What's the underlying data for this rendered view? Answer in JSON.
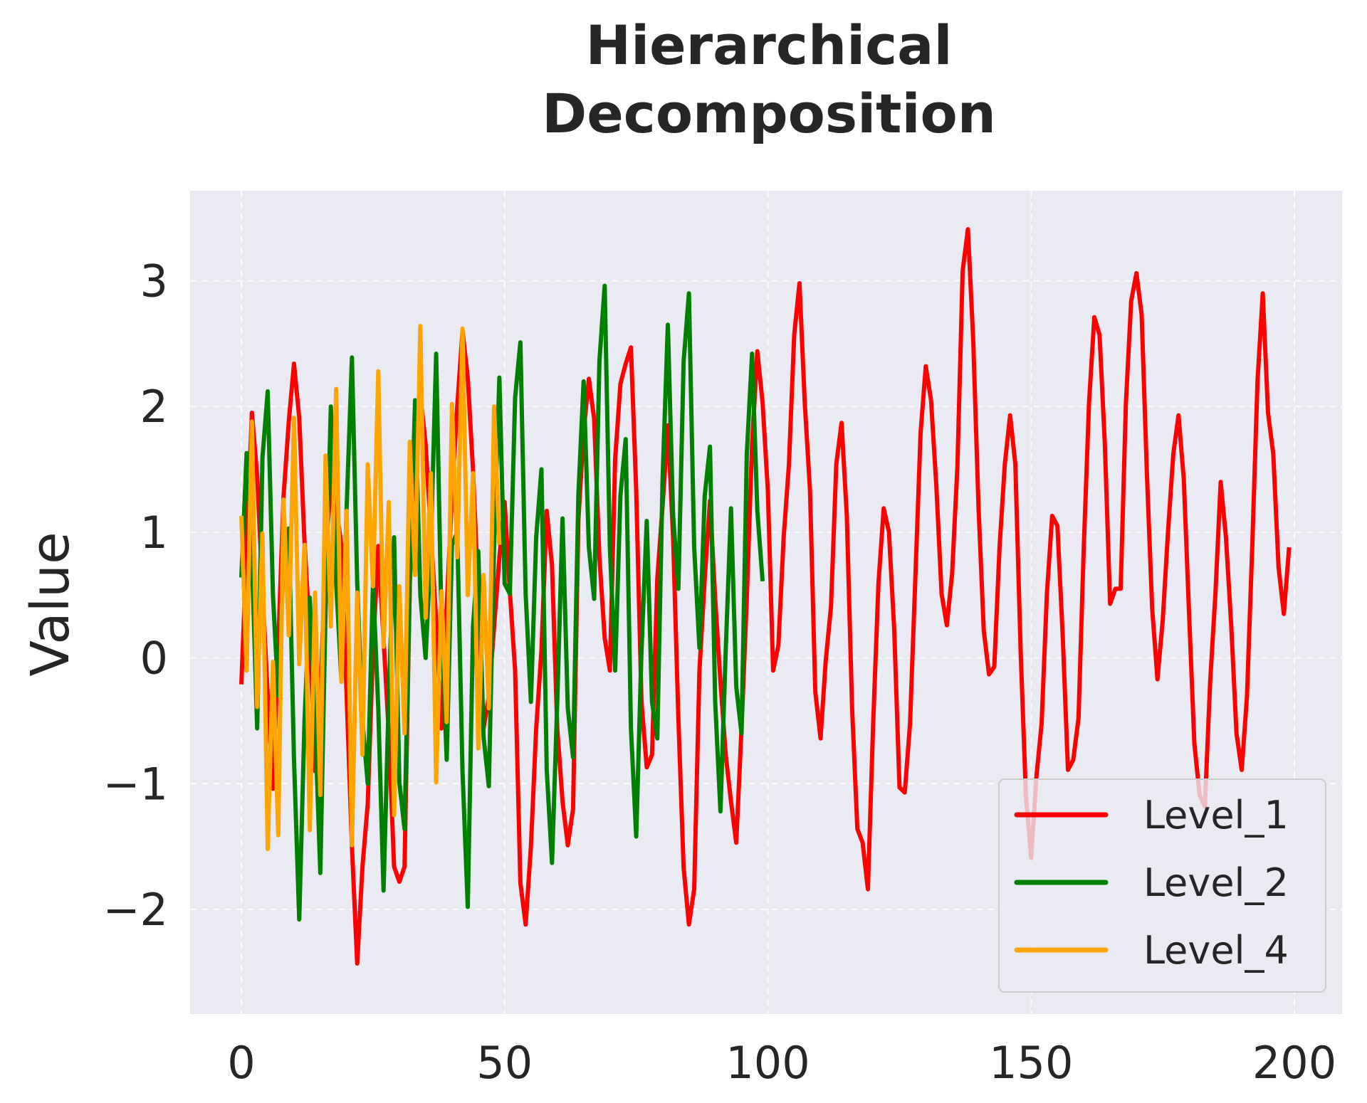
{
  "chart_data": {
    "type": "line",
    "title_lines": [
      "Hierarchical",
      "Decomposition"
    ],
    "xlabel": "",
    "ylabel": "Value",
    "xlim": [
      -10,
      209
    ],
    "ylim": [
      -2.8,
      3.75
    ],
    "x_ticks": [
      "0",
      "50",
      "100",
      "150",
      "200"
    ],
    "x_tick_values": [
      0,
      50,
      100,
      150,
      200
    ],
    "y_ticks": [
      "−2",
      "−1",
      "0",
      "1",
      "2",
      "3"
    ],
    "y_tick_values": [
      -2,
      -1,
      0,
      1,
      2,
      3
    ],
    "grid": true,
    "background": "#EAEAF2",
    "legend_position": "lower-right",
    "series": [
      {
        "name": "Level_1",
        "color": "#FF0000",
        "values": [
          -0.21,
          0.87,
          1.95,
          1.45,
          0.55,
          -0.3,
          -1.04,
          0.1,
          1.28,
          1.88,
          2.34,
          1.91,
          0.92,
          0.2,
          -0.9,
          -0.3,
          0.8,
          1.4,
          1.2,
          0.9,
          -0.3,
          -1.5,
          -2.43,
          -1.66,
          -1.16,
          0.07,
          0.89,
          0.15,
          -0.6,
          -1.66,
          -1.78,
          -1.66,
          0.6,
          1.5,
          2.1,
          1.7,
          1.0,
          0.3,
          -0.56,
          0.4,
          1.3,
          2.0,
          2.6,
          2.23,
          1.49,
          0.5,
          -0.56,
          -0.3,
          0.25,
          0.8,
          1.24,
          0.53,
          -0.1,
          -1.79,
          -2.12,
          -1.5,
          -0.56,
          0.06,
          1.17,
          0.74,
          -0.56,
          -1.14,
          -1.49,
          -1.2,
          1.09,
          1.8,
          2.22,
          1.9,
          0.8,
          0.16,
          -0.1,
          1.58,
          2.18,
          2.34,
          2.47,
          1.33,
          -0.35,
          -0.87,
          -0.77,
          0.63,
          1.21,
          1.85,
          0.96,
          -0.48,
          -1.67,
          -2.12,
          -1.84,
          -0.1,
          0.63,
          1.25,
          0.47,
          -0.19,
          -0.77,
          -1.14,
          -1.47,
          -0.56,
          0.47,
          1.7,
          2.44,
          2.03,
          1.33,
          -0.1,
          0.1,
          0.96,
          1.54,
          2.57,
          2.98,
          2.03,
          1.33,
          -0.27,
          -0.64,
          -0.02,
          0.41,
          1.54,
          1.87,
          1.13,
          -0.4,
          -1.36,
          -1.47,
          -1.84,
          -0.52,
          0.59,
          1.19,
          1.0,
          0.22,
          -1.03,
          -1.07,
          -0.52,
          0.63,
          1.79,
          2.32,
          2.05,
          1.37,
          0.51,
          0.26,
          0.67,
          1.52,
          3.08,
          3.41,
          2.53,
          1.21,
          0.22,
          -0.13,
          -0.07,
          0.88,
          1.54,
          1.93,
          1.54,
          0.06,
          -1.09,
          -1.59,
          -0.95,
          -0.52,
          0.51,
          1.13,
          1.05,
          0.18,
          -0.89,
          -0.81,
          -0.48,
          0.88,
          2.03,
          2.71,
          2.57,
          1.7,
          0.43,
          0.55,
          0.55,
          2.03,
          2.84,
          3.06,
          2.73,
          1.46,
          0.39,
          -0.17,
          0.3,
          1.0,
          1.62,
          1.93,
          1.42,
          0.35,
          -0.68,
          -1.09,
          -1.18,
          -0.19,
          0.51,
          1.4,
          0.96,
          0.26,
          -0.6,
          -0.89,
          -0.31,
          0.88,
          2.2,
          2.9,
          1.95,
          1.62,
          0.72,
          0.35,
          0.88
        ]
      },
      {
        "name": "Level_2",
        "color": "#008000",
        "values": [
          0.64,
          1.63,
          0.8,
          -0.56,
          1.59,
          2.12,
          0.5,
          -0.3,
          0.8,
          1.03,
          -0.8,
          -2.08,
          -0.5,
          0.48,
          -0.5,
          -1.71,
          0.4,
          2.0,
          0.6,
          -0.17,
          1.2,
          2.39,
          0.6,
          -0.5,
          -1.0,
          0.6,
          -0.4,
          -1.85,
          -0.3,
          0.96,
          -0.99,
          -1.36,
          0.6,
          2.05,
          0.5,
          0.0,
          0.9,
          2.42,
          0.3,
          -0.81,
          0.9,
          1.0,
          -0.9,
          -1.98,
          0.25,
          0.85,
          -0.63,
          -1.02,
          0.9,
          2.23,
          0.59,
          0.51,
          2.07,
          2.51,
          0.51,
          -0.35,
          0.96,
          1.5,
          -0.89,
          -1.63,
          -0.35,
          1.11,
          -0.4,
          -0.79,
          1.29,
          2.2,
          0.88,
          0.47,
          2.36,
          2.96,
          0.88,
          -0.1,
          1.29,
          1.74,
          -0.56,
          -1.42,
          0.06,
          1.09,
          -0.35,
          -0.64,
          1.42,
          2.65,
          1.13,
          0.55,
          2.36,
          2.9,
          0.88,
          0.08,
          1.29,
          1.68,
          -0.35,
          -1.22,
          0.06,
          1.19,
          -0.23,
          -0.6,
          1.62,
          2.42,
          1.17,
          0.61
        ]
      },
      {
        "name": "Level_4",
        "color": "#FFA500",
        "values": [
          1.13,
          -0.1,
          1.88,
          -0.39,
          0.99,
          -1.52,
          -0.03,
          -1.41,
          1.26,
          0.18,
          1.91,
          -0.05,
          0.9,
          -1.37,
          0.52,
          -1.09,
          1.61,
          0.25,
          2.14,
          -0.19,
          1.17,
          -1.49,
          0.52,
          -0.77,
          1.54,
          0.57,
          2.28,
          0.09,
          1.24,
          -1.25,
          0.57,
          -0.6,
          1.72,
          0.66,
          2.64,
          0.32,
          1.47,
          -0.99,
          0.53,
          -0.51,
          2.02,
          0.8,
          2.62,
          0.5,
          1.47,
          -0.72,
          0.66,
          -0.4,
          2.0,
          0.9
        ]
      }
    ]
  }
}
